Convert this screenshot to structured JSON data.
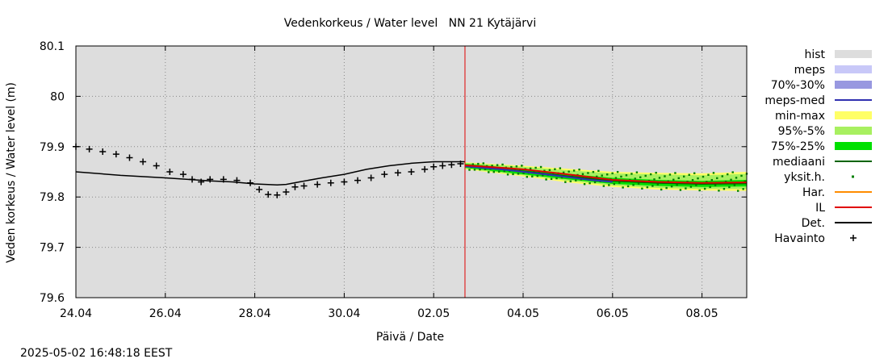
{
  "chart_data": {
    "type": "line",
    "title": "Vedenkorkeus / Water level   NN 21 Kytäjärvi",
    "xlabel": "Päivä / Date",
    "ylabel": "Veden korkeus / Water level (m)",
    "ylim": [
      79.6,
      80.1
    ],
    "y_ticks": [
      "79.6",
      "79.7",
      "79.8",
      "79.9",
      "80",
      "80.1"
    ],
    "x_range_days": [
      0,
      15
    ],
    "x_ticks": [
      {
        "day": 0,
        "label": "24.04"
      },
      {
        "day": 2,
        "label": "26.04"
      },
      {
        "day": 4,
        "label": "28.04"
      },
      {
        "day": 6,
        "label": "30.04"
      },
      {
        "day": 8,
        "label": "02.05"
      },
      {
        "day": 10,
        "label": "04.05"
      },
      {
        "day": 12,
        "label": "06.05"
      },
      {
        "day": 14,
        "label": "08.05"
      }
    ],
    "grid": true,
    "legend_position": "right",
    "forecast_start_day": 8.7,
    "colors": {
      "background": "#dddddd",
      "hist": "#dddddd",
      "meps": "#c8c8f8",
      "p70_30": "#9898e0",
      "meps_med": "#3030b0",
      "min_max": "#ffff66",
      "p95_5": "#a8f060",
      "p75_25": "#00e000",
      "mediaani": "#006400",
      "yksit": "#008000",
      "har": "#ff8c00",
      "il": "#e00000",
      "det": "#000000",
      "havainto": "#000000",
      "forecast_line": "#e00000"
    },
    "legend": [
      {
        "key": "hist",
        "label": "hist",
        "kind": "box"
      },
      {
        "key": "meps",
        "label": "meps",
        "kind": "box"
      },
      {
        "key": "p70_30",
        "label": "70%-30%",
        "kind": "box"
      },
      {
        "key": "meps_med",
        "label": "meps-med",
        "kind": "line"
      },
      {
        "key": "min_max",
        "label": "min-max",
        "kind": "box"
      },
      {
        "key": "p95_5",
        "label": "95%-5%",
        "kind": "box"
      },
      {
        "key": "p75_25",
        "label": "75%-25%",
        "kind": "box"
      },
      {
        "key": "mediaani",
        "label": "mediaani",
        "kind": "line"
      },
      {
        "key": "yksit",
        "label": "yksit.h.",
        "kind": "dot"
      },
      {
        "key": "har",
        "label": "Har.",
        "kind": "line"
      },
      {
        "key": "il",
        "label": "IL",
        "kind": "line"
      },
      {
        "key": "det",
        "label": "Det.",
        "kind": "line"
      },
      {
        "key": "havainto",
        "label": "Havainto",
        "kind": "plus"
      }
    ],
    "series": {
      "det": [
        [
          0,
          79.85
        ],
        [
          1,
          79.843
        ],
        [
          2,
          79.838
        ],
        [
          3,
          79.832
        ],
        [
          3.5,
          79.83
        ],
        [
          4,
          79.826
        ],
        [
          4.5,
          79.824
        ],
        [
          4.7,
          79.825
        ],
        [
          5,
          79.83
        ],
        [
          5.5,
          79.838
        ],
        [
          6,
          79.845
        ],
        [
          6.5,
          79.855
        ],
        [
          7,
          79.862
        ],
        [
          7.5,
          79.867
        ],
        [
          8,
          79.87
        ],
        [
          8.7,
          79.87
        ]
      ],
      "havainto": [
        [
          0,
          79.9
        ],
        [
          0.3,
          79.895
        ],
        [
          0.6,
          79.89
        ],
        [
          0.9,
          79.885
        ],
        [
          1.2,
          79.878
        ],
        [
          1.5,
          79.87
        ],
        [
          1.8,
          79.862
        ],
        [
          2.1,
          79.85
        ],
        [
          2.4,
          79.845
        ],
        [
          2.6,
          79.835
        ],
        [
          2.8,
          79.83
        ],
        [
          3,
          79.835
        ],
        [
          3.3,
          79.835
        ],
        [
          3.6,
          79.833
        ],
        [
          3.9,
          79.828
        ],
        [
          4.1,
          79.815
        ],
        [
          4.3,
          79.805
        ],
        [
          4.5,
          79.804
        ],
        [
          4.7,
          79.81
        ],
        [
          4.9,
          79.82
        ],
        [
          5.1,
          79.822
        ],
        [
          5.4,
          79.825
        ],
        [
          5.7,
          79.828
        ],
        [
          6,
          79.83
        ],
        [
          6.3,
          79.833
        ],
        [
          6.6,
          79.838
        ],
        [
          6.9,
          79.845
        ],
        [
          7.2,
          79.848
        ],
        [
          7.5,
          79.85
        ],
        [
          7.8,
          79.855
        ],
        [
          8,
          79.86
        ],
        [
          8.2,
          79.862
        ],
        [
          8.4,
          79.864
        ],
        [
          8.6,
          79.866
        ]
      ],
      "p75_25": {
        "upper": [
          [
            8.7,
            79.866
          ],
          [
            10,
            79.856
          ],
          [
            11,
            79.846
          ],
          [
            12,
            79.838
          ],
          [
            13,
            79.834
          ],
          [
            14,
            79.832
          ],
          [
            15,
            79.834
          ]
        ],
        "lower": [
          [
            8.7,
            79.858
          ],
          [
            10,
            79.845
          ],
          [
            11,
            79.835
          ],
          [
            12,
            79.826
          ],
          [
            13,
            79.822
          ],
          [
            14,
            79.82
          ],
          [
            15,
            79.821
          ]
        ]
      },
      "p95_5": {
        "upper": [
          [
            8.7,
            79.868
          ],
          [
            10,
            79.86
          ],
          [
            11,
            79.853
          ],
          [
            12,
            79.847
          ],
          [
            13,
            79.845
          ],
          [
            14,
            79.843
          ],
          [
            15,
            79.846
          ]
        ],
        "lower": [
          [
            8.7,
            79.856
          ],
          [
            10,
            79.843
          ],
          [
            11,
            79.832
          ],
          [
            12,
            79.823
          ],
          [
            13,
            79.818
          ],
          [
            14,
            79.816
          ],
          [
            15,
            79.816
          ]
        ]
      },
      "min_max": {
        "upper": [
          [
            8.7,
            79.869
          ],
          [
            10,
            79.862
          ],
          [
            11,
            79.856
          ],
          [
            12,
            79.85
          ],
          [
            13,
            79.848
          ],
          [
            14,
            79.847
          ],
          [
            15,
            79.85
          ]
        ],
        "lower": [
          [
            8.7,
            79.855
          ],
          [
            10,
            79.841
          ],
          [
            11,
            79.829
          ],
          [
            12,
            79.82
          ],
          [
            13,
            79.815
          ],
          [
            14,
            79.813
          ],
          [
            15,
            79.812
          ]
        ]
      },
      "mediaani": [
        [
          8.7,
          79.862
        ],
        [
          10,
          79.851
        ],
        [
          11,
          79.841
        ],
        [
          12,
          79.832
        ],
        [
          13,
          79.828
        ],
        [
          14,
          79.826
        ],
        [
          15,
          79.827
        ]
      ],
      "meps_med": [
        [
          8.7,
          79.861
        ],
        [
          9.5,
          79.855
        ],
        [
          10.5,
          79.845
        ],
        [
          11.5,
          79.834
        ],
        [
          12,
          79.83
        ]
      ],
      "il": [
        [
          8.7,
          79.863
        ],
        [
          10,
          79.855
        ],
        [
          11,
          79.845
        ],
        [
          12,
          79.834
        ],
        [
          13,
          79.83
        ],
        [
          14,
          79.828
        ],
        [
          15,
          79.829
        ]
      ],
      "yksit": {
        "day_start": 8.8,
        "day_end": 15,
        "count": 160
      }
    }
  },
  "timestamp": "2025-05-02 16:48:18 EEST"
}
